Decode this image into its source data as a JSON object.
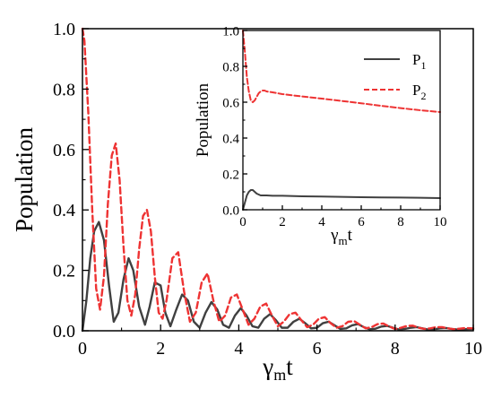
{
  "chart_data": [
    {
      "type": "line",
      "xlabel": "γ",
      "xlabel_sub": "m",
      "xlabel_tail": "t",
      "ylabel": "Population",
      "xlim": [
        0,
        10
      ],
      "ylim": [
        0,
        1.0
      ],
      "x_ticks": [
        0,
        2,
        4,
        6,
        8,
        10
      ],
      "x_tick_labels": [
        "0",
        "2",
        "4",
        "6",
        "8",
        "10"
      ],
      "y_ticks": [
        0,
        0.2,
        0.4,
        0.6,
        0.8,
        1.0
      ],
      "y_tick_labels": [
        "0.0",
        "0.2",
        "0.4",
        "0.6",
        "0.8",
        "1.0"
      ],
      "grid": false,
      "series": [
        {
          "legend": "P1",
          "color": "#404040",
          "style": "solid",
          "x": [
            0,
            0.1,
            0.2,
            0.3,
            0.42,
            0.55,
            0.68,
            0.8,
            0.92,
            1.05,
            1.18,
            1.3,
            1.45,
            1.6,
            1.72,
            1.85,
            2.0,
            2.12,
            2.25,
            2.4,
            2.55,
            2.7,
            2.85,
            3.0,
            3.15,
            3.3,
            3.45,
            3.6,
            3.75,
            3.9,
            4.05,
            4.2,
            4.35,
            4.5,
            4.65,
            4.8,
            4.95,
            5.1,
            5.25,
            5.4,
            5.55,
            5.7,
            5.85,
            6.0,
            6.15,
            6.3,
            6.45,
            6.6,
            6.75,
            6.9,
            7.05,
            7.2,
            7.35,
            7.5,
            7.65,
            7.8,
            7.95,
            8.1,
            8.25,
            8.4,
            8.55,
            8.7,
            8.85,
            9.0,
            9.15,
            9.3,
            9.45,
            9.6,
            9.75,
            10.0
          ],
          "y": [
            0.0,
            0.1,
            0.24,
            0.33,
            0.36,
            0.3,
            0.15,
            0.03,
            0.06,
            0.17,
            0.24,
            0.2,
            0.08,
            0.02,
            0.08,
            0.16,
            0.15,
            0.06,
            0.015,
            0.07,
            0.12,
            0.1,
            0.03,
            0.01,
            0.06,
            0.095,
            0.07,
            0.02,
            0.01,
            0.05,
            0.075,
            0.05,
            0.015,
            0.01,
            0.04,
            0.055,
            0.035,
            0.01,
            0.01,
            0.03,
            0.04,
            0.025,
            0.008,
            0.01,
            0.025,
            0.03,
            0.018,
            0.006,
            0.008,
            0.018,
            0.022,
            0.012,
            0.005,
            0.007,
            0.014,
            0.016,
            0.01,
            0.004,
            0.006,
            0.01,
            0.012,
            0.008,
            0.004,
            0.005,
            0.008,
            0.009,
            0.006,
            0.004,
            0.005,
            0.006
          ]
        },
        {
          "legend": "P2",
          "color": "#ee3333",
          "style": "dashed",
          "x": [
            0,
            0.05,
            0.15,
            0.25,
            0.35,
            0.45,
            0.55,
            0.65,
            0.75,
            0.85,
            0.95,
            1.05,
            1.15,
            1.25,
            1.35,
            1.45,
            1.55,
            1.65,
            1.75,
            1.85,
            1.95,
            2.05,
            2.15,
            2.3,
            2.45,
            2.6,
            2.75,
            2.9,
            3.05,
            3.2,
            3.35,
            3.5,
            3.65,
            3.8,
            3.95,
            4.1,
            4.25,
            4.4,
            4.55,
            4.7,
            4.85,
            5.0,
            5.15,
            5.3,
            5.45,
            5.6,
            5.75,
            5.9,
            6.05,
            6.2,
            6.35,
            6.5,
            6.65,
            6.8,
            6.95,
            7.1,
            7.25,
            7.4,
            7.55,
            7.7,
            7.85,
            8.0,
            8.15,
            8.3,
            8.45,
            8.6,
            8.75,
            8.9,
            9.05,
            9.2,
            9.35,
            9.5,
            9.65,
            9.8,
            10.0
          ],
          "y": [
            1.0,
            0.96,
            0.72,
            0.4,
            0.14,
            0.07,
            0.18,
            0.42,
            0.58,
            0.62,
            0.5,
            0.28,
            0.1,
            0.05,
            0.12,
            0.27,
            0.38,
            0.4,
            0.33,
            0.18,
            0.06,
            0.04,
            0.1,
            0.24,
            0.26,
            0.13,
            0.03,
            0.06,
            0.16,
            0.19,
            0.1,
            0.03,
            0.05,
            0.11,
            0.12,
            0.07,
            0.02,
            0.04,
            0.08,
            0.09,
            0.05,
            0.015,
            0.03,
            0.055,
            0.06,
            0.035,
            0.012,
            0.02,
            0.04,
            0.045,
            0.025,
            0.01,
            0.015,
            0.03,
            0.032,
            0.02,
            0.008,
            0.012,
            0.022,
            0.024,
            0.014,
            0.006,
            0.01,
            0.016,
            0.017,
            0.01,
            0.006,
            0.008,
            0.012,
            0.012,
            0.008,
            0.005,
            0.007,
            0.009,
            0.008
          ]
        }
      ]
    },
    {
      "type": "line",
      "xlabel": "γ",
      "xlabel_sub": "m",
      "xlabel_tail": "t",
      "ylabel": "Population",
      "xlim": [
        0,
        10
      ],
      "ylim": [
        0,
        1.0
      ],
      "x_ticks": [
        0,
        2,
        4,
        6,
        8,
        10
      ],
      "x_tick_labels": [
        "0",
        "2",
        "4",
        "6",
        "8",
        "10"
      ],
      "y_ticks": [
        0,
        0.2,
        0.4,
        0.6,
        0.8,
        1.0
      ],
      "y_tick_labels": [
        "0.0",
        "0.2",
        "0.4",
        "0.6",
        "0.8",
        "1.0"
      ],
      "legend_position": "top-right",
      "grid": false,
      "series": [
        {
          "legend": "P",
          "legend_sub": "1",
          "color": "#404040",
          "style": "solid",
          "x": [
            0,
            0.1,
            0.2,
            0.3,
            0.4,
            0.5,
            0.6,
            0.7,
            0.8,
            0.9,
            1.0,
            1.2,
            1.5,
            2.0,
            3.0,
            4.0,
            5.0,
            6.0,
            7.0,
            8.0,
            9.0,
            10.0
          ],
          "y": [
            0.0,
            0.04,
            0.08,
            0.1,
            0.11,
            0.11,
            0.1,
            0.09,
            0.085,
            0.08,
            0.08,
            0.08,
            0.078,
            0.078,
            0.075,
            0.074,
            0.072,
            0.07,
            0.069,
            0.068,
            0.067,
            0.065
          ]
        },
        {
          "legend": "P",
          "legend_sub": "2",
          "color": "#ee3333",
          "style": "dashed",
          "x": [
            0,
            0.1,
            0.2,
            0.3,
            0.4,
            0.5,
            0.6,
            0.7,
            0.8,
            0.9,
            1.0,
            1.1,
            1.2,
            1.5,
            2.0,
            3.0,
            4.0,
            5.0,
            6.0,
            7.0,
            8.0,
            9.0,
            10.0
          ],
          "y": [
            1.0,
            0.88,
            0.74,
            0.66,
            0.61,
            0.6,
            0.61,
            0.63,
            0.65,
            0.66,
            0.665,
            0.665,
            0.66,
            0.655,
            0.645,
            0.632,
            0.62,
            0.607,
            0.594,
            0.58,
            0.567,
            0.555,
            0.545
          ]
        }
      ]
    }
  ]
}
